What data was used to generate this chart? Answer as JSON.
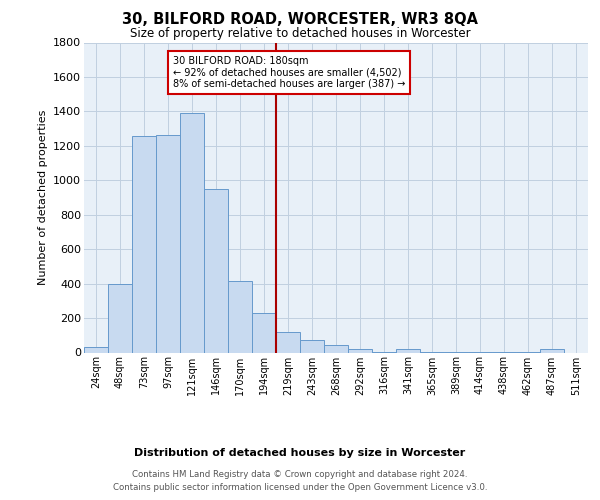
{
  "title": "30, BILFORD ROAD, WORCESTER, WR3 8QA",
  "subtitle": "Size of property relative to detached houses in Worcester",
  "xlabel": "Distribution of detached houses by size in Worcester",
  "ylabel": "Number of detached properties",
  "footer_line1": "Contains HM Land Registry data © Crown copyright and database right 2024.",
  "footer_line2": "Contains public sector information licensed under the Open Government Licence v3.0.",
  "categories": [
    "24sqm",
    "48sqm",
    "73sqm",
    "97sqm",
    "121sqm",
    "146sqm",
    "170sqm",
    "194sqm",
    "219sqm",
    "243sqm",
    "268sqm",
    "292sqm",
    "316sqm",
    "341sqm",
    "365sqm",
    "389sqm",
    "414sqm",
    "438sqm",
    "462sqm",
    "487sqm",
    "511sqm"
  ],
  "values": [
    30,
    400,
    1260,
    1265,
    1390,
    950,
    415,
    230,
    120,
    75,
    45,
    20,
    5,
    20,
    5,
    5,
    5,
    5,
    5,
    20,
    0
  ],
  "bar_color": "#c8daf0",
  "bar_edge_color": "#6699cc",
  "grid_color": "#c0cfe0",
  "background_color": "#e8f0f8",
  "vline_color": "#aa0000",
  "vline_x": 7.5,
  "annotation_text": "30 BILFORD ROAD: 180sqm\n← 92% of detached houses are smaller (4,502)\n8% of semi-detached houses are larger (387) →",
  "annotation_box_color": "#cc0000",
  "ylim": [
    0,
    1800
  ],
  "yticks": [
    0,
    200,
    400,
    600,
    800,
    1000,
    1200,
    1400,
    1600,
    1800
  ]
}
